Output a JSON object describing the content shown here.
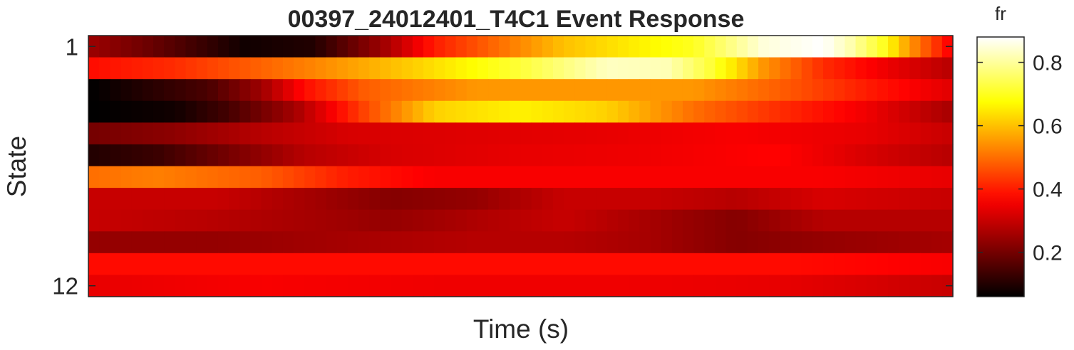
{
  "chart_data": {
    "type": "heatmap",
    "title": "00397_24012401_T4C1 Event Response",
    "xlabel": "Time (s)",
    "ylabel": "State",
    "y_ticks": [
      "1",
      "12"
    ],
    "colorbar": {
      "label": "fr",
      "ticks": [
        "0.2",
        "0.4",
        "0.6",
        "0.8"
      ],
      "tick_values": [
        0.2,
        0.4,
        0.6,
        0.8
      ],
      "range": [
        0.06,
        0.88
      ],
      "colormap": "hot"
    },
    "rows": [
      {
        "state": 1,
        "keys": [
          [
            0,
            0.25
          ],
          [
            8,
            0.18
          ],
          [
            18,
            0.08
          ],
          [
            26,
            0.1
          ],
          [
            34,
            0.25
          ],
          [
            40,
            0.4
          ],
          [
            55,
            0.6
          ],
          [
            70,
            0.7
          ],
          [
            78,
            0.85
          ],
          [
            85,
            0.88
          ],
          [
            88,
            0.82
          ],
          [
            92,
            0.7
          ],
          [
            95,
            0.55
          ],
          [
            100,
            0.35
          ]
        ]
      },
      {
        "state": 2,
        "keys": [
          [
            0,
            0.38
          ],
          [
            10,
            0.42
          ],
          [
            25,
            0.52
          ],
          [
            38,
            0.62
          ],
          [
            50,
            0.72
          ],
          [
            60,
            0.83
          ],
          [
            67,
            0.82
          ],
          [
            72,
            0.72
          ],
          [
            78,
            0.55
          ],
          [
            85,
            0.42
          ],
          [
            92,
            0.35
          ],
          [
            100,
            0.28
          ]
        ]
      },
      {
        "state": 3,
        "keys": [
          [
            0,
            0.06
          ],
          [
            6,
            0.1
          ],
          [
            14,
            0.15
          ],
          [
            20,
            0.25
          ],
          [
            25,
            0.38
          ],
          [
            32,
            0.48
          ],
          [
            45,
            0.55
          ],
          [
            70,
            0.55
          ],
          [
            80,
            0.48
          ],
          [
            90,
            0.4
          ],
          [
            100,
            0.33
          ]
        ]
      },
      {
        "state": 4,
        "keys": [
          [
            0,
            0.06
          ],
          [
            10,
            0.08
          ],
          [
            16,
            0.14
          ],
          [
            24,
            0.26
          ],
          [
            32,
            0.45
          ],
          [
            40,
            0.62
          ],
          [
            50,
            0.66
          ],
          [
            60,
            0.62
          ],
          [
            70,
            0.5
          ],
          [
            80,
            0.42
          ],
          [
            90,
            0.35
          ],
          [
            100,
            0.26
          ]
        ]
      },
      {
        "state": 5,
        "keys": [
          [
            0,
            0.2
          ],
          [
            10,
            0.23
          ],
          [
            20,
            0.28
          ],
          [
            30,
            0.32
          ],
          [
            45,
            0.33
          ],
          [
            60,
            0.34
          ],
          [
            75,
            0.36
          ],
          [
            90,
            0.34
          ],
          [
            100,
            0.3
          ]
        ]
      },
      {
        "state": 6,
        "keys": [
          [
            0,
            0.1
          ],
          [
            8,
            0.13
          ],
          [
            16,
            0.2
          ],
          [
            25,
            0.28
          ],
          [
            35,
            0.32
          ],
          [
            50,
            0.34
          ],
          [
            65,
            0.35
          ],
          [
            80,
            0.37
          ],
          [
            90,
            0.32
          ],
          [
            100,
            0.28
          ]
        ]
      },
      {
        "state": 7,
        "keys": [
          [
            0,
            0.5
          ],
          [
            8,
            0.52
          ],
          [
            20,
            0.48
          ],
          [
            30,
            0.4
          ],
          [
            40,
            0.36
          ],
          [
            55,
            0.36
          ],
          [
            70,
            0.36
          ],
          [
            85,
            0.36
          ],
          [
            100,
            0.34
          ]
        ]
      },
      {
        "state": 8,
        "keys": [
          [
            0,
            0.3
          ],
          [
            15,
            0.3
          ],
          [
            25,
            0.26
          ],
          [
            35,
            0.22
          ],
          [
            45,
            0.24
          ],
          [
            55,
            0.3
          ],
          [
            65,
            0.3
          ],
          [
            75,
            0.28
          ],
          [
            85,
            0.32
          ],
          [
            100,
            0.3
          ]
        ]
      },
      {
        "state": 9,
        "keys": [
          [
            0,
            0.3
          ],
          [
            15,
            0.28
          ],
          [
            25,
            0.26
          ],
          [
            35,
            0.24
          ],
          [
            45,
            0.27
          ],
          [
            55,
            0.3
          ],
          [
            65,
            0.26
          ],
          [
            75,
            0.22
          ],
          [
            85,
            0.28
          ],
          [
            100,
            0.28
          ]
        ]
      },
      {
        "state": 10,
        "keys": [
          [
            0,
            0.24
          ],
          [
            15,
            0.24
          ],
          [
            30,
            0.26
          ],
          [
            45,
            0.28
          ],
          [
            55,
            0.28
          ],
          [
            65,
            0.26
          ],
          [
            75,
            0.22
          ],
          [
            85,
            0.24
          ],
          [
            100,
            0.26
          ]
        ]
      },
      {
        "state": 11,
        "keys": [
          [
            0,
            0.38
          ],
          [
            20,
            0.38
          ],
          [
            40,
            0.38
          ],
          [
            60,
            0.38
          ],
          [
            80,
            0.38
          ],
          [
            100,
            0.36
          ]
        ]
      },
      {
        "state": 12,
        "keys": [
          [
            0,
            0.34
          ],
          [
            20,
            0.36
          ],
          [
            40,
            0.35
          ],
          [
            60,
            0.35
          ],
          [
            80,
            0.34
          ],
          [
            100,
            0.3
          ]
        ]
      }
    ],
    "columns": 80
  }
}
